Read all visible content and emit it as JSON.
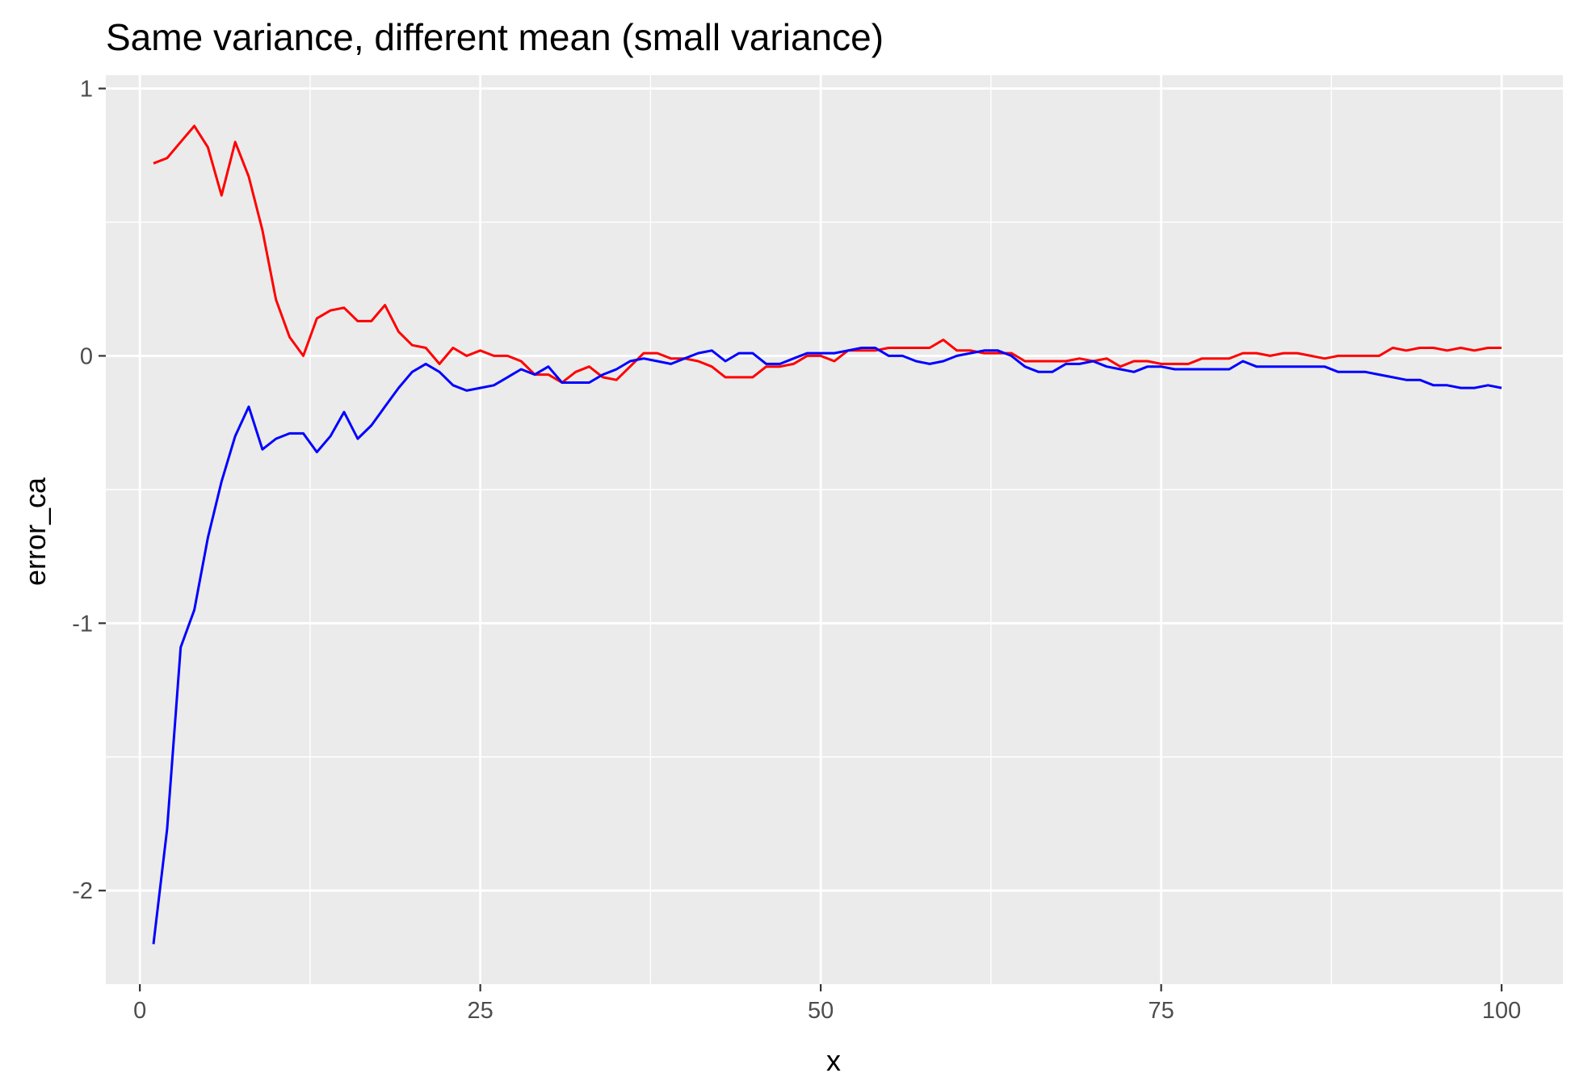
{
  "chart_data": {
    "type": "line",
    "title": "Same variance, different mean (small variance)",
    "xlabel": "x",
    "ylabel": "error_ca",
    "xlim": [
      -2.5,
      104.5
    ],
    "ylim": [
      -2.35,
      1.05
    ],
    "x_ticks": [
      0,
      25,
      50,
      75,
      100
    ],
    "x_tick_labels": [
      "0",
      "25",
      "50",
      "75",
      "100"
    ],
    "y_ticks": [
      1,
      0,
      -1,
      -2
    ],
    "y_tick_labels": [
      "1",
      "0",
      "-1",
      "-2"
    ],
    "grid": true,
    "panel_background": "#ebebeb",
    "grid_color": "#ffffff",
    "legend": "none",
    "series": [
      {
        "color": "#ff0000",
        "x": [
          1,
          2,
          3,
          4,
          5,
          6,
          7,
          8,
          9,
          10,
          11,
          12,
          13,
          14,
          15,
          16,
          17,
          18,
          19,
          20,
          21,
          22,
          23,
          24,
          25,
          26,
          27,
          28,
          29,
          30,
          31,
          32,
          33,
          34,
          35,
          36,
          37,
          38,
          39,
          40,
          41,
          42,
          43,
          44,
          45,
          46,
          47,
          48,
          49,
          50,
          51,
          52,
          53,
          54,
          55,
          56,
          57,
          58,
          59,
          60,
          61,
          62,
          63,
          64,
          65,
          66,
          67,
          68,
          69,
          70,
          71,
          72,
          73,
          74,
          75,
          76,
          77,
          78,
          79,
          80,
          81,
          82,
          83,
          84,
          85,
          86,
          87,
          88,
          89,
          90,
          91,
          92,
          93,
          94,
          95,
          96,
          97,
          98,
          99,
          100
        ],
        "values": [
          0.72,
          0.74,
          0.8,
          0.86,
          0.78,
          0.6,
          0.8,
          0.67,
          0.47,
          0.21,
          0.07,
          0.0,
          0.14,
          0.17,
          0.18,
          0.13,
          0.13,
          0.19,
          0.09,
          0.04,
          0.03,
          -0.03,
          0.03,
          0.0,
          0.02,
          0.0,
          0.0,
          -0.02,
          -0.07,
          -0.07,
          -0.1,
          -0.06,
          -0.04,
          -0.08,
          -0.09,
          -0.04,
          0.01,
          0.01,
          -0.01,
          -0.01,
          -0.02,
          -0.04,
          -0.08,
          -0.08,
          -0.08,
          -0.04,
          -0.04,
          -0.03,
          0.0,
          0.0,
          -0.02,
          0.02,
          0.02,
          0.02,
          0.03,
          0.03,
          0.03,
          0.03,
          0.06,
          0.02,
          0.02,
          0.01,
          0.01,
          0.01,
          -0.02,
          -0.02,
          -0.02,
          -0.02,
          -0.01,
          -0.02,
          -0.01,
          -0.04,
          -0.02,
          -0.02,
          -0.03,
          -0.03,
          -0.03,
          -0.01,
          -0.01,
          -0.01,
          0.01,
          0.01,
          0.0,
          0.01,
          0.01,
          0.0,
          -0.01,
          0.0,
          0.0,
          0.0,
          0.0,
          0.03,
          0.02,
          0.03,
          0.03,
          0.02,
          0.03,
          0.02,
          0.03,
          0.03
        ]
      },
      {
        "color": "#0000ff",
        "x": [
          1,
          2,
          3,
          4,
          5,
          6,
          7,
          8,
          9,
          10,
          11,
          12,
          13,
          14,
          15,
          16,
          17,
          18,
          19,
          20,
          21,
          22,
          23,
          24,
          25,
          26,
          27,
          28,
          29,
          30,
          31,
          32,
          33,
          34,
          35,
          36,
          37,
          38,
          39,
          40,
          41,
          42,
          43,
          44,
          45,
          46,
          47,
          48,
          49,
          50,
          51,
          52,
          53,
          54,
          55,
          56,
          57,
          58,
          59,
          60,
          61,
          62,
          63,
          64,
          65,
          66,
          67,
          68,
          69,
          70,
          71,
          72,
          73,
          74,
          75,
          76,
          77,
          78,
          79,
          80,
          81,
          82,
          83,
          84,
          85,
          86,
          87,
          88,
          89,
          90,
          91,
          92,
          93,
          94,
          95,
          96,
          97,
          98,
          99,
          100
        ],
        "values": [
          -2.2,
          -1.77,
          -1.09,
          -0.95,
          -0.68,
          -0.47,
          -0.3,
          -0.19,
          -0.35,
          -0.31,
          -0.29,
          -0.29,
          -0.36,
          -0.3,
          -0.21,
          -0.31,
          -0.26,
          -0.19,
          -0.12,
          -0.06,
          -0.03,
          -0.06,
          -0.11,
          -0.13,
          -0.12,
          -0.11,
          -0.08,
          -0.05,
          -0.07,
          -0.04,
          -0.1,
          -0.1,
          -0.1,
          -0.07,
          -0.05,
          -0.02,
          -0.01,
          -0.02,
          -0.03,
          -0.01,
          0.01,
          0.02,
          -0.02,
          0.01,
          0.01,
          -0.03,
          -0.03,
          -0.01,
          0.01,
          0.01,
          0.01,
          0.02,
          0.03,
          0.03,
          0.0,
          0.0,
          -0.02,
          -0.03,
          -0.02,
          0.0,
          0.01,
          0.02,
          0.02,
          0.0,
          -0.04,
          -0.06,
          -0.06,
          -0.03,
          -0.03,
          -0.02,
          -0.04,
          -0.05,
          -0.06,
          -0.04,
          -0.04,
          -0.05,
          -0.05,
          -0.05,
          -0.05,
          -0.05,
          -0.02,
          -0.04,
          -0.04,
          -0.04,
          -0.04,
          -0.04,
          -0.04,
          -0.06,
          -0.06,
          -0.06,
          -0.07,
          -0.08,
          -0.09,
          -0.09,
          -0.11,
          -0.11,
          -0.12,
          -0.12,
          -0.11,
          -0.12
        ]
      }
    ]
  }
}
